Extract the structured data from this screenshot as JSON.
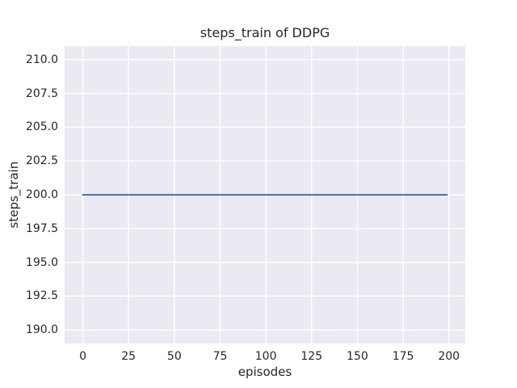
{
  "chart_data": {
    "type": "line",
    "title": "steps_train of DDPG",
    "xlabel": "episodes",
    "ylabel": "steps_train",
    "xlim": [
      -9.95,
      208.95
    ],
    "ylim": [
      189.0,
      211.0
    ],
    "grid": true,
    "legend": "none",
    "x_ticks": [
      {
        "value": 0,
        "label": "0"
      },
      {
        "value": 25,
        "label": "25"
      },
      {
        "value": 50,
        "label": "50"
      },
      {
        "value": 75,
        "label": "75"
      },
      {
        "value": 100,
        "label": "100"
      },
      {
        "value": 125,
        "label": "125"
      },
      {
        "value": 150,
        "label": "150"
      },
      {
        "value": 175,
        "label": "175"
      },
      {
        "value": 200,
        "label": "200"
      }
    ],
    "y_ticks": [
      {
        "value": 190.0,
        "label": "190.0"
      },
      {
        "value": 192.5,
        "label": "192.5"
      },
      {
        "value": 195.0,
        "label": "195.0"
      },
      {
        "value": 197.5,
        "label": "197.5"
      },
      {
        "value": 200.0,
        "label": "200.0"
      },
      {
        "value": 202.5,
        "label": "202.5"
      },
      {
        "value": 205.0,
        "label": "205.0"
      },
      {
        "value": 207.5,
        "label": "207.5"
      },
      {
        "value": 210.0,
        "label": "210.0"
      }
    ],
    "series": [
      {
        "name": "steps_train",
        "description": "constant value 200 for every episode 0 through 199",
        "x": [
          0,
          199
        ],
        "y": [
          200,
          200
        ],
        "color": "#4c72b0"
      }
    ],
    "colors": {
      "plot_background": "#eaeaf2",
      "gridline": "#ffffff",
      "text": "#262626",
      "line": "#4c72b0"
    }
  }
}
